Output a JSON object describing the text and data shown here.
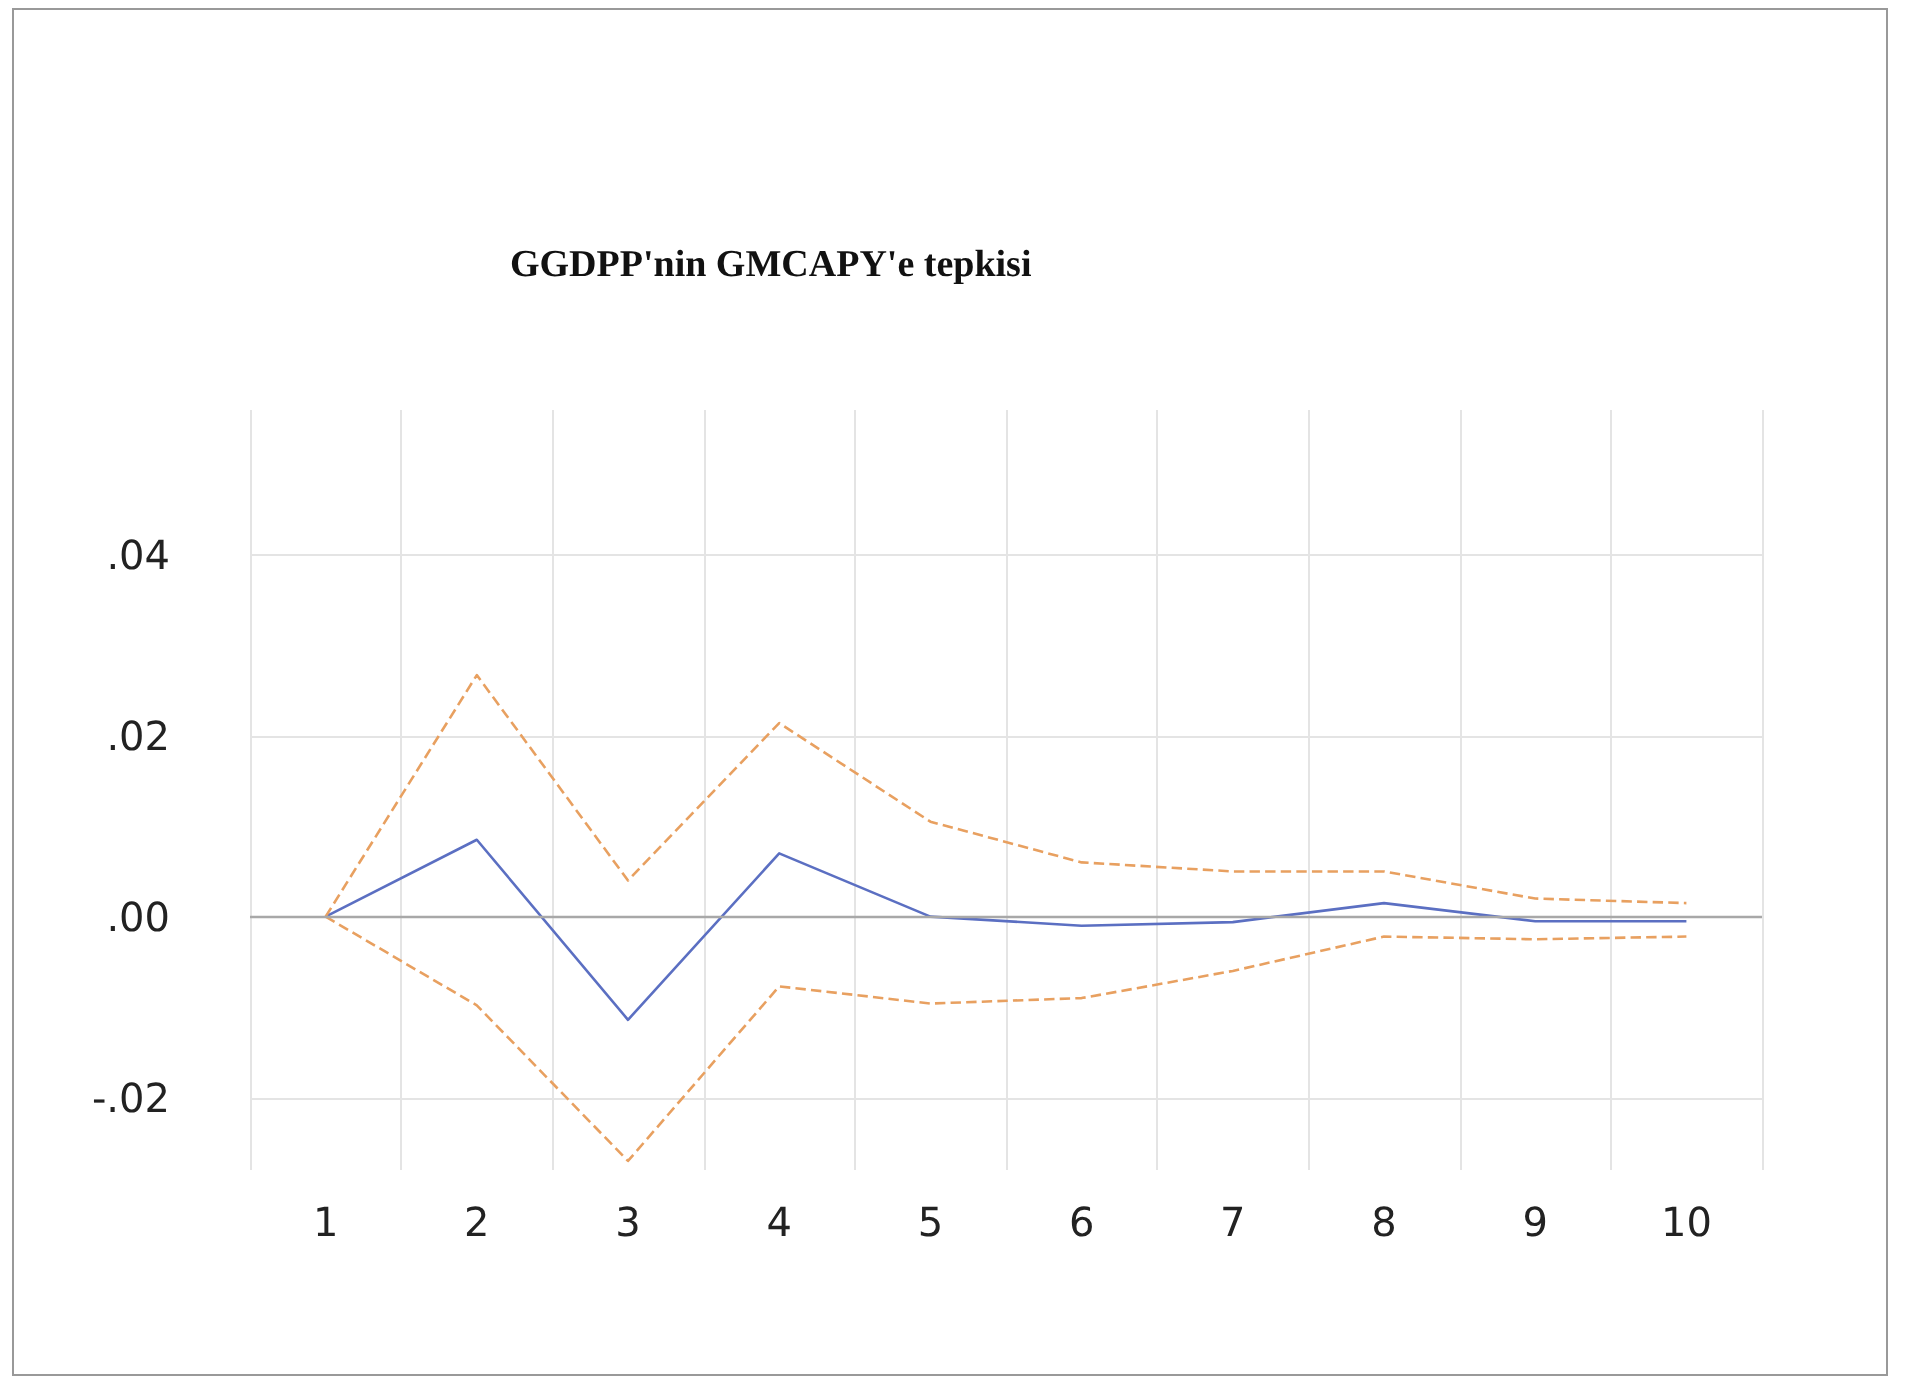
{
  "chart_data": {
    "type": "line",
    "title": "GGDPP'nin GMCAPY'e tepkisi",
    "categories": [
      "1",
      "2",
      "3",
      "4",
      "5",
      "6",
      "7",
      "8",
      "9",
      "10"
    ],
    "series": [
      {
        "color": "#5b6fc2",
        "line_style": "solid",
        "values": [
          0,
          0.0085,
          -0.0114,
          0.007,
          0.0,
          -0.001,
          -0.0006,
          0.0015,
          -0.0005,
          -0.0005
        ]
      },
      {
        "color": "#e8a060",
        "line_style": "dashed",
        "values": [
          0,
          0.0267,
          0.004,
          0.0214,
          0.0105,
          0.006,
          0.005,
          0.005,
          0.002,
          0.0015
        ]
      },
      {
        "color": "#e8a060",
        "line_style": "dashed",
        "values": [
          0,
          -0.0098,
          -0.027,
          -0.0077,
          -0.0096,
          -0.009,
          -0.006,
          -0.0022,
          -0.0025,
          -0.0022
        ]
      }
    ],
    "ylim": [
      -0.028,
      0.056
    ],
    "yticks": [
      {
        "value": -0.02,
        "label": "-.02"
      },
      {
        "value": 0,
        "label": ".00"
      },
      {
        "value": 0.02,
        "label": ".02"
      },
      {
        "value": 0.04,
        "label": ".04"
      }
    ],
    "ref_lines": [
      {
        "axis": "y",
        "value": 0,
        "color": "#a8a8a8"
      }
    ],
    "grid": true,
    "marker": "none"
  }
}
